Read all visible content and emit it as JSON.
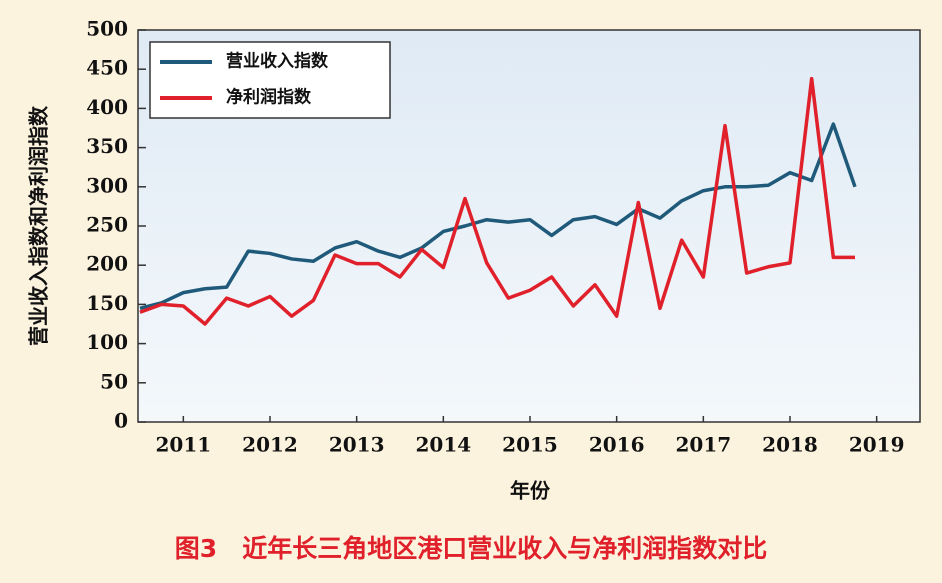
{
  "chart_data": {
    "type": "line",
    "title": "图3　近年长三角地区港口营业收入与净利润指数对比",
    "x_label": "年份",
    "y_label": "营业收入指数和净利润指数",
    "x": [
      2011,
      2011.25,
      2011.5,
      2011.75,
      2012,
      2012.25,
      2012.5,
      2012.75,
      2013,
      2013.25,
      2013.5,
      2013.75,
      2014,
      2014.25,
      2014.5,
      2014.75,
      2015,
      2015.25,
      2015.5,
      2015.75,
      2016,
      2016.25,
      2016.5,
      2016.75,
      2017,
      2017.25,
      2017.5,
      2017.75,
      2018,
      2018.25,
      2018.5,
      2018.75,
      2019,
      2019.25
    ],
    "series": [
      {
        "name": "营业收入指数",
        "color": "#1f5a7a",
        "values": [
          145,
          152,
          165,
          170,
          172,
          218,
          215,
          208,
          205,
          222,
          230,
          218,
          210,
          222,
          243,
          250,
          258,
          255,
          258,
          238,
          258,
          262,
          252,
          272,
          260,
          282,
          295,
          300,
          300,
          302,
          318,
          308,
          380,
          300
        ]
      },
      {
        "name": "净利润指数",
        "color": "#e0202a",
        "values": [
          140,
          150,
          148,
          125,
          158,
          148,
          160,
          135,
          155,
          213,
          202,
          202,
          185,
          220,
          197,
          285,
          203,
          158,
          168,
          185,
          148,
          175,
          135,
          280,
          145,
          232,
          185,
          378,
          190,
          198,
          203,
          438,
          210,
          210
        ]
      }
    ],
    "xlim": [
      2011,
      2020
    ],
    "xticks": [
      {
        "value": 2011.5,
        "label": "2011"
      },
      {
        "value": 2012.5,
        "label": "2012"
      },
      {
        "value": 2013.5,
        "label": "2013"
      },
      {
        "value": 2014.5,
        "label": "2014"
      },
      {
        "value": 2015.5,
        "label": "2015"
      },
      {
        "value": 2016.5,
        "label": "2016"
      },
      {
        "value": 2017.5,
        "label": "2017"
      },
      {
        "value": 2018.5,
        "label": "2018"
      },
      {
        "value": 2019.5,
        "label": "2019"
      }
    ],
    "ylim": [
      0,
      500
    ],
    "yticks": [
      0,
      50,
      100,
      150,
      200,
      250,
      300,
      350,
      400,
      450,
      500
    ],
    "legend": "upper left"
  }
}
